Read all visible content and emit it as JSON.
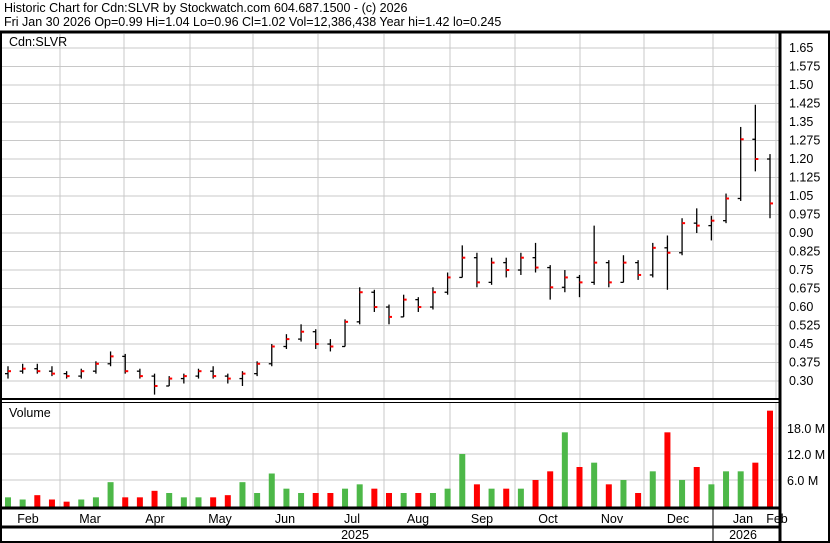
{
  "header": {
    "line1": "Historic Chart for Cdn:SLVR by Stockwatch.com 604.687.1500 - (c) 2026",
    "line2": "Fri Jan 30 2026  Op=0.99  Hi=1.04  Lo=0.96  Cl=1.02  Vol=12,386,438  Year hi=1.42  lo=0.245"
  },
  "chart_data": {
    "type": "ohlc",
    "symbol_label": "Cdn:SLVR",
    "volume_label": "Volume",
    "price_ticks": [
      "1.65",
      "1.575",
      "1.50",
      "1.425",
      "1.35",
      "1.275",
      "1.20",
      "1.125",
      "1.05",
      "0.975",
      "0.90",
      "0.825",
      "0.75",
      "0.675",
      "0.60",
      "0.525",
      "0.45",
      "0.375",
      "0.30"
    ],
    "price_range": [
      0.245,
      1.65
    ],
    "volume_ticks": [
      "18.0 M",
      "12.0 M",
      "6.0 M"
    ],
    "volume_unit": "M",
    "volume_range": [
      0,
      24
    ],
    "months": [
      "Feb",
      "Mar",
      "Apr",
      "May",
      "Jun",
      "Jul",
      "Aug",
      "Sep",
      "Oct",
      "Nov",
      "Dec",
      "Jan",
      "Feb"
    ],
    "years": [
      "2025",
      "2026"
    ],
    "grid": true,
    "colors": {
      "bar": "#000000",
      "close_tick": "#ff0000",
      "vol_up": "#4db848",
      "vol_down": "#ff0000",
      "vol_flat": "#a8a8a8",
      "grid": "#c8c8c8"
    },
    "weeks": [
      {
        "w": "2025-01-27",
        "o": 0.33,
        "h": 0.36,
        "l": 0.31,
        "c": 0.34,
        "v": 2.0
      },
      {
        "w": "2025-02-03",
        "o": 0.34,
        "h": 0.37,
        "l": 0.33,
        "c": 0.35,
        "v": 1.5
      },
      {
        "w": "2025-02-10",
        "o": 0.35,
        "h": 0.37,
        "l": 0.33,
        "c": 0.34,
        "v": 2.5
      },
      {
        "w": "2025-02-17",
        "o": 0.34,
        "h": 0.36,
        "l": 0.32,
        "c": 0.33,
        "v": 1.5
      },
      {
        "w": "2025-02-24",
        "o": 0.33,
        "h": 0.34,
        "l": 0.31,
        "c": 0.32,
        "v": 1.0
      },
      {
        "w": "2025-03-03",
        "o": 0.32,
        "h": 0.35,
        "l": 0.31,
        "c": 0.34,
        "v": 1.5
      },
      {
        "w": "2025-03-10",
        "o": 0.34,
        "h": 0.38,
        "l": 0.33,
        "c": 0.37,
        "v": 2.0
      },
      {
        "w": "2025-03-17",
        "o": 0.37,
        "h": 0.42,
        "l": 0.36,
        "c": 0.4,
        "v": 5.5
      },
      {
        "w": "2025-03-24",
        "o": 0.4,
        "h": 0.41,
        "l": 0.33,
        "c": 0.34,
        "v": 2.0
      },
      {
        "w": "2025-03-31",
        "o": 0.34,
        "h": 0.35,
        "l": 0.31,
        "c": 0.32,
        "v": 2.0
      },
      {
        "w": "2025-04-07",
        "o": 0.32,
        "h": 0.33,
        "l": 0.245,
        "c": 0.28,
        "v": 3.5
      },
      {
        "w": "2025-04-14",
        "o": 0.28,
        "h": 0.32,
        "l": 0.28,
        "c": 0.31,
        "v": 3.0
      },
      {
        "w": "2025-04-21",
        "o": 0.31,
        "h": 0.33,
        "l": 0.29,
        "c": 0.32,
        "v": 2.0
      },
      {
        "w": "2025-04-28",
        "o": 0.32,
        "h": 0.35,
        "l": 0.31,
        "c": 0.34,
        "v": 2.0
      },
      {
        "w": "2025-05-05",
        "o": 0.34,
        "h": 0.36,
        "l": 0.31,
        "c": 0.32,
        "v": 2.0
      },
      {
        "w": "2025-05-12",
        "o": 0.32,
        "h": 0.33,
        "l": 0.29,
        "c": 0.31,
        "v": 2.5
      },
      {
        "w": "2025-05-19",
        "o": 0.31,
        "h": 0.34,
        "l": 0.28,
        "c": 0.33,
        "v": 5.5
      },
      {
        "w": "2025-05-26",
        "o": 0.33,
        "h": 0.38,
        "l": 0.32,
        "c": 0.37,
        "v": 3.0
      },
      {
        "w": "2025-06-02",
        "o": 0.37,
        "h": 0.45,
        "l": 0.36,
        "c": 0.44,
        "v": 7.5
      },
      {
        "w": "2025-06-09",
        "o": 0.44,
        "h": 0.49,
        "l": 0.43,
        "c": 0.47,
        "v": 4.0
      },
      {
        "w": "2025-06-16",
        "o": 0.47,
        "h": 0.53,
        "l": 0.46,
        "c": 0.5,
        "v": 3.0
      },
      {
        "w": "2025-06-23",
        "o": 0.5,
        "h": 0.51,
        "l": 0.43,
        "c": 0.45,
        "v": 3.0
      },
      {
        "w": "2025-06-30",
        "o": 0.45,
        "h": 0.47,
        "l": 0.42,
        "c": 0.44,
        "v": 3.0
      },
      {
        "w": "2025-07-07",
        "o": 0.44,
        "h": 0.55,
        "l": 0.44,
        "c": 0.54,
        "v": 4.0
      },
      {
        "w": "2025-07-14",
        "o": 0.54,
        "h": 0.68,
        "l": 0.53,
        "c": 0.66,
        "v": 5.0
      },
      {
        "w": "2025-07-21",
        "o": 0.66,
        "h": 0.67,
        "l": 0.58,
        "c": 0.6,
        "v": 4.0
      },
      {
        "w": "2025-07-28",
        "o": 0.6,
        "h": 0.61,
        "l": 0.53,
        "c": 0.56,
        "v": 3.0
      },
      {
        "w": "2025-08-04",
        "o": 0.56,
        "h": 0.65,
        "l": 0.56,
        "c": 0.63,
        "v": 3.0
      },
      {
        "w": "2025-08-11",
        "o": 0.63,
        "h": 0.64,
        "l": 0.58,
        "c": 0.6,
        "v": 3.0
      },
      {
        "w": "2025-08-18",
        "o": 0.6,
        "h": 0.68,
        "l": 0.59,
        "c": 0.66,
        "v": 3.0
      },
      {
        "w": "2025-08-25",
        "o": 0.66,
        "h": 0.74,
        "l": 0.65,
        "c": 0.72,
        "v": 4.0
      },
      {
        "w": "2025-09-01",
        "o": 0.72,
        "h": 0.85,
        "l": 0.72,
        "c": 0.8,
        "v": 12.0
      },
      {
        "w": "2025-09-08",
        "o": 0.8,
        "h": 0.82,
        "l": 0.68,
        "c": 0.7,
        "v": 5.0
      },
      {
        "w": "2025-09-15",
        "o": 0.7,
        "h": 0.8,
        "l": 0.69,
        "c": 0.78,
        "v": 4.0
      },
      {
        "w": "2025-09-22",
        "o": 0.78,
        "h": 0.8,
        "l": 0.72,
        "c": 0.75,
        "v": 4.0
      },
      {
        "w": "2025-09-29",
        "o": 0.75,
        "h": 0.82,
        "l": 0.73,
        "c": 0.8,
        "v": 4.0
      },
      {
        "w": "2025-10-06",
        "o": 0.8,
        "h": 0.86,
        "l": 0.74,
        "c": 0.76,
        "v": 6.0
      },
      {
        "w": "2025-10-13",
        "o": 0.76,
        "h": 0.77,
        "l": 0.63,
        "c": 0.68,
        "v": 8.0
      },
      {
        "w": "2025-10-20",
        "o": 0.68,
        "h": 0.75,
        "l": 0.66,
        "c": 0.72,
        "v": 17.0
      },
      {
        "w": "2025-10-27",
        "o": 0.72,
        "h": 0.73,
        "l": 0.64,
        "c": 0.7,
        "v": 9.0
      },
      {
        "w": "2025-11-03",
        "o": 0.7,
        "h": 0.93,
        "l": 0.69,
        "c": 0.78,
        "v": 10.0
      },
      {
        "w": "2025-11-10",
        "o": 0.78,
        "h": 0.79,
        "l": 0.68,
        "c": 0.7,
        "v": 5.0
      },
      {
        "w": "2025-11-17",
        "o": 0.7,
        "h": 0.81,
        "l": 0.7,
        "c": 0.78,
        "v": 6.0
      },
      {
        "w": "2025-11-24",
        "o": 0.78,
        "h": 0.79,
        "l": 0.71,
        "c": 0.73,
        "v": 3.0
      },
      {
        "w": "2025-12-01",
        "o": 0.73,
        "h": 0.86,
        "l": 0.72,
        "c": 0.84,
        "v": 8.0
      },
      {
        "w": "2025-12-08",
        "o": 0.84,
        "h": 0.89,
        "l": 0.67,
        "c": 0.82,
        "v": 17.0
      },
      {
        "w": "2025-12-15",
        "o": 0.82,
        "h": 0.96,
        "l": 0.81,
        "c": 0.94,
        "v": 6.0
      },
      {
        "w": "2025-12-22",
        "o": 0.94,
        "h": 1.0,
        "l": 0.9,
        "c": 0.93,
        "v": 9.0
      },
      {
        "w": "2025-12-29",
        "o": 0.93,
        "h": 0.97,
        "l": 0.87,
        "c": 0.95,
        "v": 5.0
      },
      {
        "w": "2026-01-05",
        "o": 0.95,
        "h": 1.06,
        "l": 0.94,
        "c": 1.04,
        "v": 8.0
      },
      {
        "w": "2026-01-12",
        "o": 1.04,
        "h": 1.33,
        "l": 1.03,
        "c": 1.28,
        "v": 8.0
      },
      {
        "w": "2026-01-19",
        "o": 1.28,
        "h": 1.42,
        "l": 1.15,
        "c": 1.2,
        "v": 10.0
      },
      {
        "w": "2026-01-26",
        "o": 1.2,
        "h": 1.22,
        "l": 0.96,
        "c": 1.02,
        "v": 22.0
      }
    ]
  }
}
